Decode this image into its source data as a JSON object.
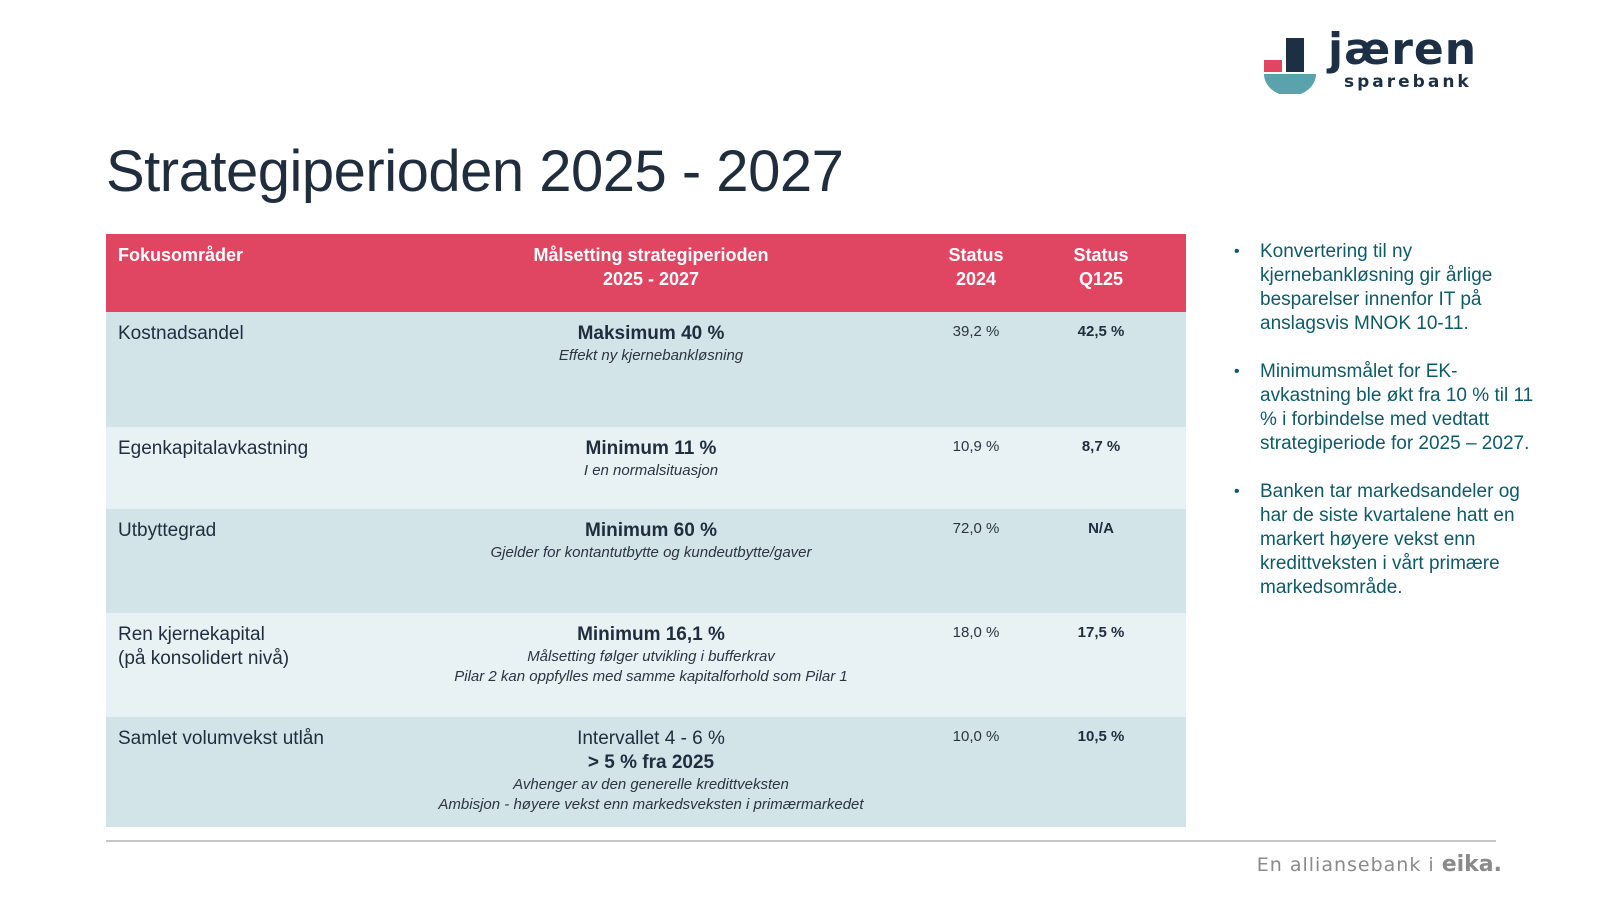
{
  "logo": {
    "wordmark": "jæren",
    "subtitle": "sparebank"
  },
  "title": "Strategiperioden 2025 - 2027",
  "table": {
    "headers": {
      "focus": "Fokusområder",
      "goal_line1": "Målsetting strategiperioden",
      "goal_line2": "2025 - 2027",
      "status2024_line1": "Status",
      "status2024_line2": "2024",
      "statusq125_line1": "Status",
      "statusq125_line2": "Q125"
    },
    "rows": [
      {
        "focus": "Kostnadsandel",
        "goal_main": "Maksimum 40 %",
        "goal_sub1": "Effekt ny kjernebankløsning",
        "status_2024": "39,2 %",
        "status_q125": "42,5 %"
      },
      {
        "focus": "Egenkapitalavkastning",
        "goal_main": "Minimum 11 %",
        "goal_sub1": "I en normalsituasjon",
        "status_2024": "10,9 %",
        "status_q125": "8,7 %"
      },
      {
        "focus": "Utbyttegrad",
        "goal_main": "Minimum 60 %",
        "goal_sub1": "Gjelder for kontantutbytte og kundeutbytte/gaver",
        "status_2024": "72,0 %",
        "status_q125": "N/A"
      },
      {
        "focus": "Ren kjernekapital\n(på konsolidert nivå)",
        "goal_main": "Minimum 16,1 %",
        "goal_sub1": "Målsetting følger utvikling i bufferkrav",
        "goal_sub2": "Pilar 2 kan oppfylles med samme kapitalforhold som Pilar 1",
        "status_2024": "18,0 %",
        "status_q125": "17,5 %"
      },
      {
        "focus": "Samlet volumvekst utlån",
        "goal_plain": "Intervallet 4 - 6 %",
        "goal_main": "> 5 % fra 2025",
        "goal_sub1": "Avhenger av den generelle kredittveksten",
        "goal_sub2": "Ambisjon - høyere vekst enn markedsveksten i primærmarkedet",
        "status_2024": "10,0 %",
        "status_q125": "10,5 %"
      }
    ]
  },
  "bullets": [
    "Konvertering til ny kjernebankløsning gir årlige besparelser innenfor IT på anslagsvis MNOK 10-11.",
    "Minimumsmålet for EK-avkastning ble økt fra 10 % til 11 % i forbindelse med vedtatt strategiperiode for 2025 – 2027.",
    "Banken tar markedsandeler og har de siste kvartalene hatt en markert høyere vekst enn kredittveksten i vårt primære markedsområde."
  ],
  "bullet_glyph": "•",
  "footer": {
    "text": "En alliansebank i",
    "brand": "eika."
  },
  "colors": {
    "header_bg": "#e04562",
    "row_dark": "#d3e4e9",
    "row_light": "#e8f1f4",
    "bullet_text": "#0f5a68",
    "logo_red": "#e04562",
    "logo_navy": "#1c2f44",
    "logo_teal": "#5aa3ad"
  }
}
